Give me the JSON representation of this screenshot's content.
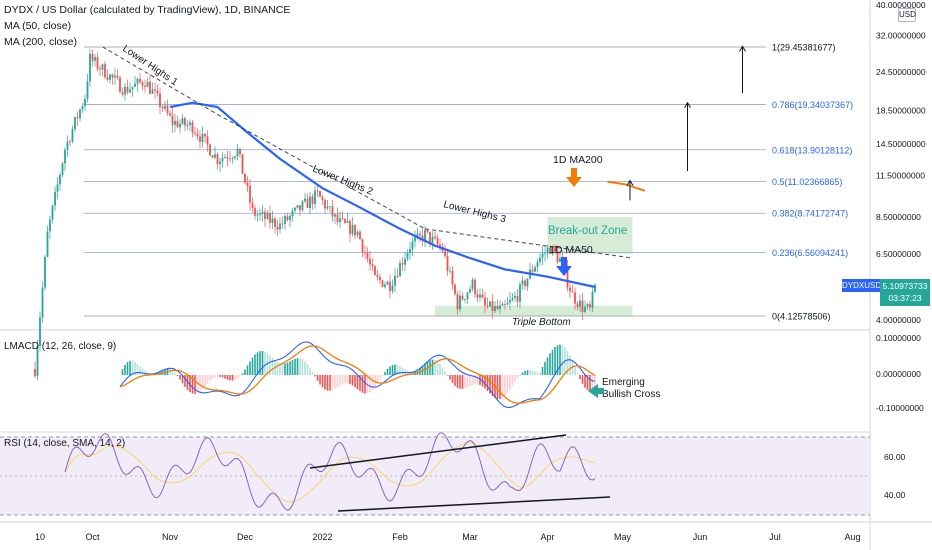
{
  "header": {
    "symbol_line": "DYDX / US Dollar (calculated by TradingView), 1D, BINANCE",
    "ma50_line": "MA (50, close)",
    "ma200_line": "MA (200, close)"
  },
  "price_axis": {
    "currency_badge": "USD",
    "top_label": "40.00000000",
    "labels": [
      "32.00000000",
      "24.50000000",
      "18.50000000",
      "14.50000000",
      "11.50000000",
      "8.50000000",
      "6.50000000",
      "4.00000000"
    ],
    "symbol_tag": "DYDXUSD",
    "last_price": "5.10973733",
    "countdown": "03:37:23"
  },
  "time_axis": {
    "labels": [
      "10",
      "Oct",
      "Nov",
      "Dec",
      "2022",
      "Feb",
      "Mar",
      "Apr",
      "May",
      "Jun",
      "Jul",
      "Aug"
    ]
  },
  "fibonacci": [
    {
      "label": "1(29.45381677)",
      "value": 29.45381677
    },
    {
      "label": "0.786(19.34037367)",
      "value": 19.34037367
    },
    {
      "label": "0.618(13.90128112)",
      "value": 13.90128112
    },
    {
      "label": "0.5(11.02366865)",
      "value": 11.02366865
    },
    {
      "label": "0.382(8.74172747)",
      "value": 8.74172747
    },
    {
      "label": "0.236(6.56094241)",
      "value": 6.56094241
    },
    {
      "label": "0(4.12578506)",
      "value": 4.12578506
    }
  ],
  "annotations": {
    "lower_highs_1": "Lower Highs 1",
    "lower_highs_2": "Lower Highs 2",
    "lower_highs_3": "Lower Highs 3",
    "breakout_zone": "Break-out Zone",
    "ma200_label": "1D MA200",
    "ma50_label": "1D MA50",
    "triple_bottom": "Triple Bottom",
    "emerging_line1": "Emerging",
    "emerging_line2": "Bullish Cross"
  },
  "macd": {
    "title": "LMACD (12, 26, close, 9)",
    "axis_labels": [
      "0.10000000",
      "0.00000000",
      "-0.10000000"
    ]
  },
  "rsi": {
    "title": "RSI (14, close, SMA, 14, 2)",
    "axis_labels": [
      "60.00",
      "40.00"
    ]
  },
  "colors": {
    "bull": "#26a69a",
    "bear": "#ef5350",
    "ma50": "#2962ff",
    "ma200": "#f57c00",
    "fib": "#90a4d4",
    "zone": "#c8e6c9",
    "rsi_line": "#7e57c2",
    "rsi_band": "#ede7f6",
    "macd_line": "#2962ff",
    "signal_line": "#f57c00"
  },
  "chart_data": {
    "type": "candlestick",
    "symbol": "DYDX / US Dollar",
    "timeframe": "1D",
    "exchange": "BINANCE",
    "y_scale": "log",
    "ylim": [
      3.6,
      40
    ],
    "price_path": [
      {
        "date": "2021-09-08",
        "price": 2.8
      },
      {
        "date": "2021-09-13",
        "price": 7.5
      },
      {
        "date": "2021-09-20",
        "price": 14.0
      },
      {
        "date": "2021-09-28",
        "price": 20.5
      },
      {
        "date": "2021-09-30",
        "price": 27.0
      },
      {
        "date": "2021-10-05",
        "price": 25.0
      },
      {
        "date": "2021-10-14",
        "price": 21.5
      },
      {
        "date": "2021-10-22",
        "price": 23.0
      },
      {
        "date": "2021-11-02",
        "price": 17.0
      },
      {
        "date": "2021-11-10",
        "price": 16.5
      },
      {
        "date": "2021-11-20",
        "price": 13.0
      },
      {
        "date": "2021-11-28",
        "price": 13.8
      },
      {
        "date": "2021-12-04",
        "price": 8.8
      },
      {
        "date": "2021-12-15",
        "price": 8.0
      },
      {
        "date": "2021-12-25",
        "price": 9.3
      },
      {
        "date": "2021-12-30",
        "price": 10.0
      },
      {
        "date": "2022-01-07",
        "price": 8.2
      },
      {
        "date": "2022-01-15",
        "price": 7.6
      },
      {
        "date": "2022-01-22",
        "price": 5.4
      },
      {
        "date": "2022-01-28",
        "price": 5.2
      },
      {
        "date": "2022-02-05",
        "price": 6.9
      },
      {
        "date": "2022-02-11",
        "price": 7.5
      },
      {
        "date": "2022-02-18",
        "price": 6.7
      },
      {
        "date": "2022-02-24",
        "price": 4.5
      },
      {
        "date": "2022-03-02",
        "price": 5.2
      },
      {
        "date": "2022-03-07",
        "price": 4.4
      },
      {
        "date": "2022-03-14",
        "price": 4.3
      },
      {
        "date": "2022-03-20",
        "price": 4.8
      },
      {
        "date": "2022-03-28",
        "price": 6.2
      },
      {
        "date": "2022-04-02",
        "price": 6.8
      },
      {
        "date": "2022-04-06",
        "price": 6.2
      },
      {
        "date": "2022-04-11",
        "price": 4.8
      },
      {
        "date": "2022-04-15",
        "price": 4.4
      },
      {
        "date": "2022-04-18",
        "price": 4.3
      },
      {
        "date": "2022-04-20",
        "price": 5.11
      }
    ],
    "ma200": [
      {
        "date": "2022-04-25",
        "price": 11.0
      },
      {
        "date": "2022-05-02",
        "price": 10.8
      },
      {
        "date": "2022-05-10",
        "price": 10.3
      }
    ],
    "ma50": [
      {
        "date": "2021-11-01",
        "price": 19.0
      },
      {
        "date": "2021-11-10",
        "price": 19.6
      },
      {
        "date": "2021-11-20",
        "price": 19.0
      },
      {
        "date": "2021-12-01",
        "price": 16.0
      },
      {
        "date": "2021-12-15",
        "price": 13.0
      },
      {
        "date": "2022-01-01",
        "price": 10.5
      },
      {
        "date": "2022-01-15",
        "price": 9.2
      },
      {
        "date": "2022-02-01",
        "price": 7.8
      },
      {
        "date": "2022-02-15",
        "price": 6.9
      },
      {
        "date": "2022-03-01",
        "price": 6.3
      },
      {
        "date": "2022-03-15",
        "price": 5.8
      },
      {
        "date": "2022-04-01",
        "price": 5.5
      },
      {
        "date": "2022-04-20",
        "price": 5.1
      }
    ],
    "trendlines": [
      {
        "name": "Lower Highs 1",
        "from": {
          "date": "2021-10-05",
          "price": 29.5
        },
        "to": {
          "date": "2021-11-20",
          "price": 18.0
        }
      },
      {
        "name": "Lower Highs 2",
        "from": {
          "date": "2021-11-20",
          "price": 18.0
        },
        "to": {
          "date": "2022-02-11",
          "price": 7.8
        }
      },
      {
        "name": "Lower Highs 3",
        "from": {
          "date": "2022-02-11",
          "price": 7.8
        },
        "to": {
          "date": "2022-05-05",
          "price": 6.3
        }
      }
    ],
    "zones": [
      {
        "name": "Break-out Zone",
        "from": "2022-04-01",
        "to": "2022-05-05",
        "low": 6.5,
        "high": 8.5
      },
      {
        "name": "Triple Bottom",
        "from": "2022-02-15",
        "to": "2022-05-05",
        "low": 4.12,
        "high": 4.45
      }
    ],
    "targets": [
      {
        "date": "2022-05-04",
        "from": 9.6,
        "to": 11.1
      },
      {
        "date": "2022-05-27",
        "from": 11.9,
        "to": 19.6
      },
      {
        "date": "2022-06-18",
        "from": 21.0,
        "to": 29.6
      }
    ],
    "macd_range": [
      -0.16,
      0.12
    ],
    "rsi_range": [
      25,
      75
    ]
  }
}
